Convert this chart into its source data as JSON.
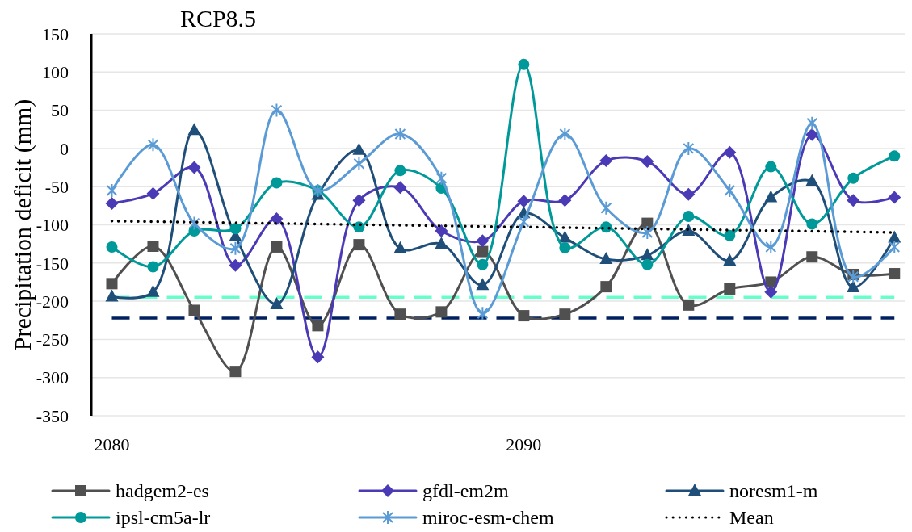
{
  "chart_data": {
    "type": "line",
    "title": "RCP8.5",
    "ylabel": "Precipitation deficit (mm)",
    "x": [
      2080,
      2081,
      2082,
      2083,
      2084,
      2085,
      2086,
      2087,
      2088,
      2089,
      2090,
      2091,
      2092,
      2093,
      2094,
      2095,
      2096,
      2097,
      2098,
      2099
    ],
    "xlim": [
      2079.5,
      2099.25
    ],
    "xticks": [
      2080,
      2090
    ],
    "ylim": [
      -350,
      150
    ],
    "yticks": [
      -350,
      -300,
      -250,
      -200,
      -150,
      -100,
      -50,
      0,
      50,
      100,
      150
    ],
    "grid": "y",
    "legend": "bottom",
    "series": [
      {
        "name": "hadgem2-es",
        "color": "#505050",
        "marker": "square",
        "values": [
          -177,
          -128,
          -212,
          -292,
          -129,
          -232,
          -126,
          -217,
          -214,
          -135,
          -219,
          -217,
          -181,
          -98,
          -205,
          -184,
          -175,
          -142,
          -165,
          -164
        ]
      },
      {
        "name": "gfdl-em2m",
        "color": "#4a3ab5",
        "marker": "diamond",
        "values": [
          -72,
          -59,
          -25,
          -153,
          -92,
          -273,
          -68,
          -51,
          -108,
          -121,
          -69,
          -68,
          -16,
          -17,
          -60,
          -5,
          -188,
          18,
          -68,
          -64
        ]
      },
      {
        "name": "noresm1-m",
        "color": "#1f4e79",
        "marker": "triangle",
        "values": [
          -194,
          -188,
          24,
          -115,
          -204,
          -61,
          -2,
          -131,
          -125,
          -179,
          -85,
          -117,
          -145,
          -140,
          -108,
          -147,
          -64,
          -43,
          -182,
          -117
        ]
      },
      {
        "name": "ipsl-cm5a-lr",
        "color": "#009999",
        "marker": "circle",
        "values": [
          -129,
          -155,
          -108,
          -105,
          -45,
          -55,
          -103,
          -29,
          -52,
          -152,
          110,
          -130,
          -103,
          -152,
          -89,
          -114,
          -24,
          -99,
          -39,
          -10
        ]
      },
      {
        "name": "miroc-esm-chem",
        "color": "#5b9bd5",
        "marker": "cross",
        "values": [
          -55,
          5,
          -98,
          -131,
          50,
          -55,
          -20,
          19,
          -39,
          -216,
          -96,
          19,
          -78,
          -110,
          0,
          -55,
          -129,
          33,
          -168,
          -129
        ]
      },
      {
        "name": "Mean",
        "color": "#000000",
        "marker": "none",
        "line_style": "dotted",
        "x": [
          2080,
          2099
        ],
        "values": [
          -95,
          -110
        ]
      }
    ],
    "ref_lines": [
      {
        "axis": "y",
        "value": -195,
        "color": "#66ffcc",
        "line_style": "dashed"
      },
      {
        "axis": "y",
        "value": -222,
        "color": "#002060",
        "line_style": "dashed"
      }
    ]
  }
}
